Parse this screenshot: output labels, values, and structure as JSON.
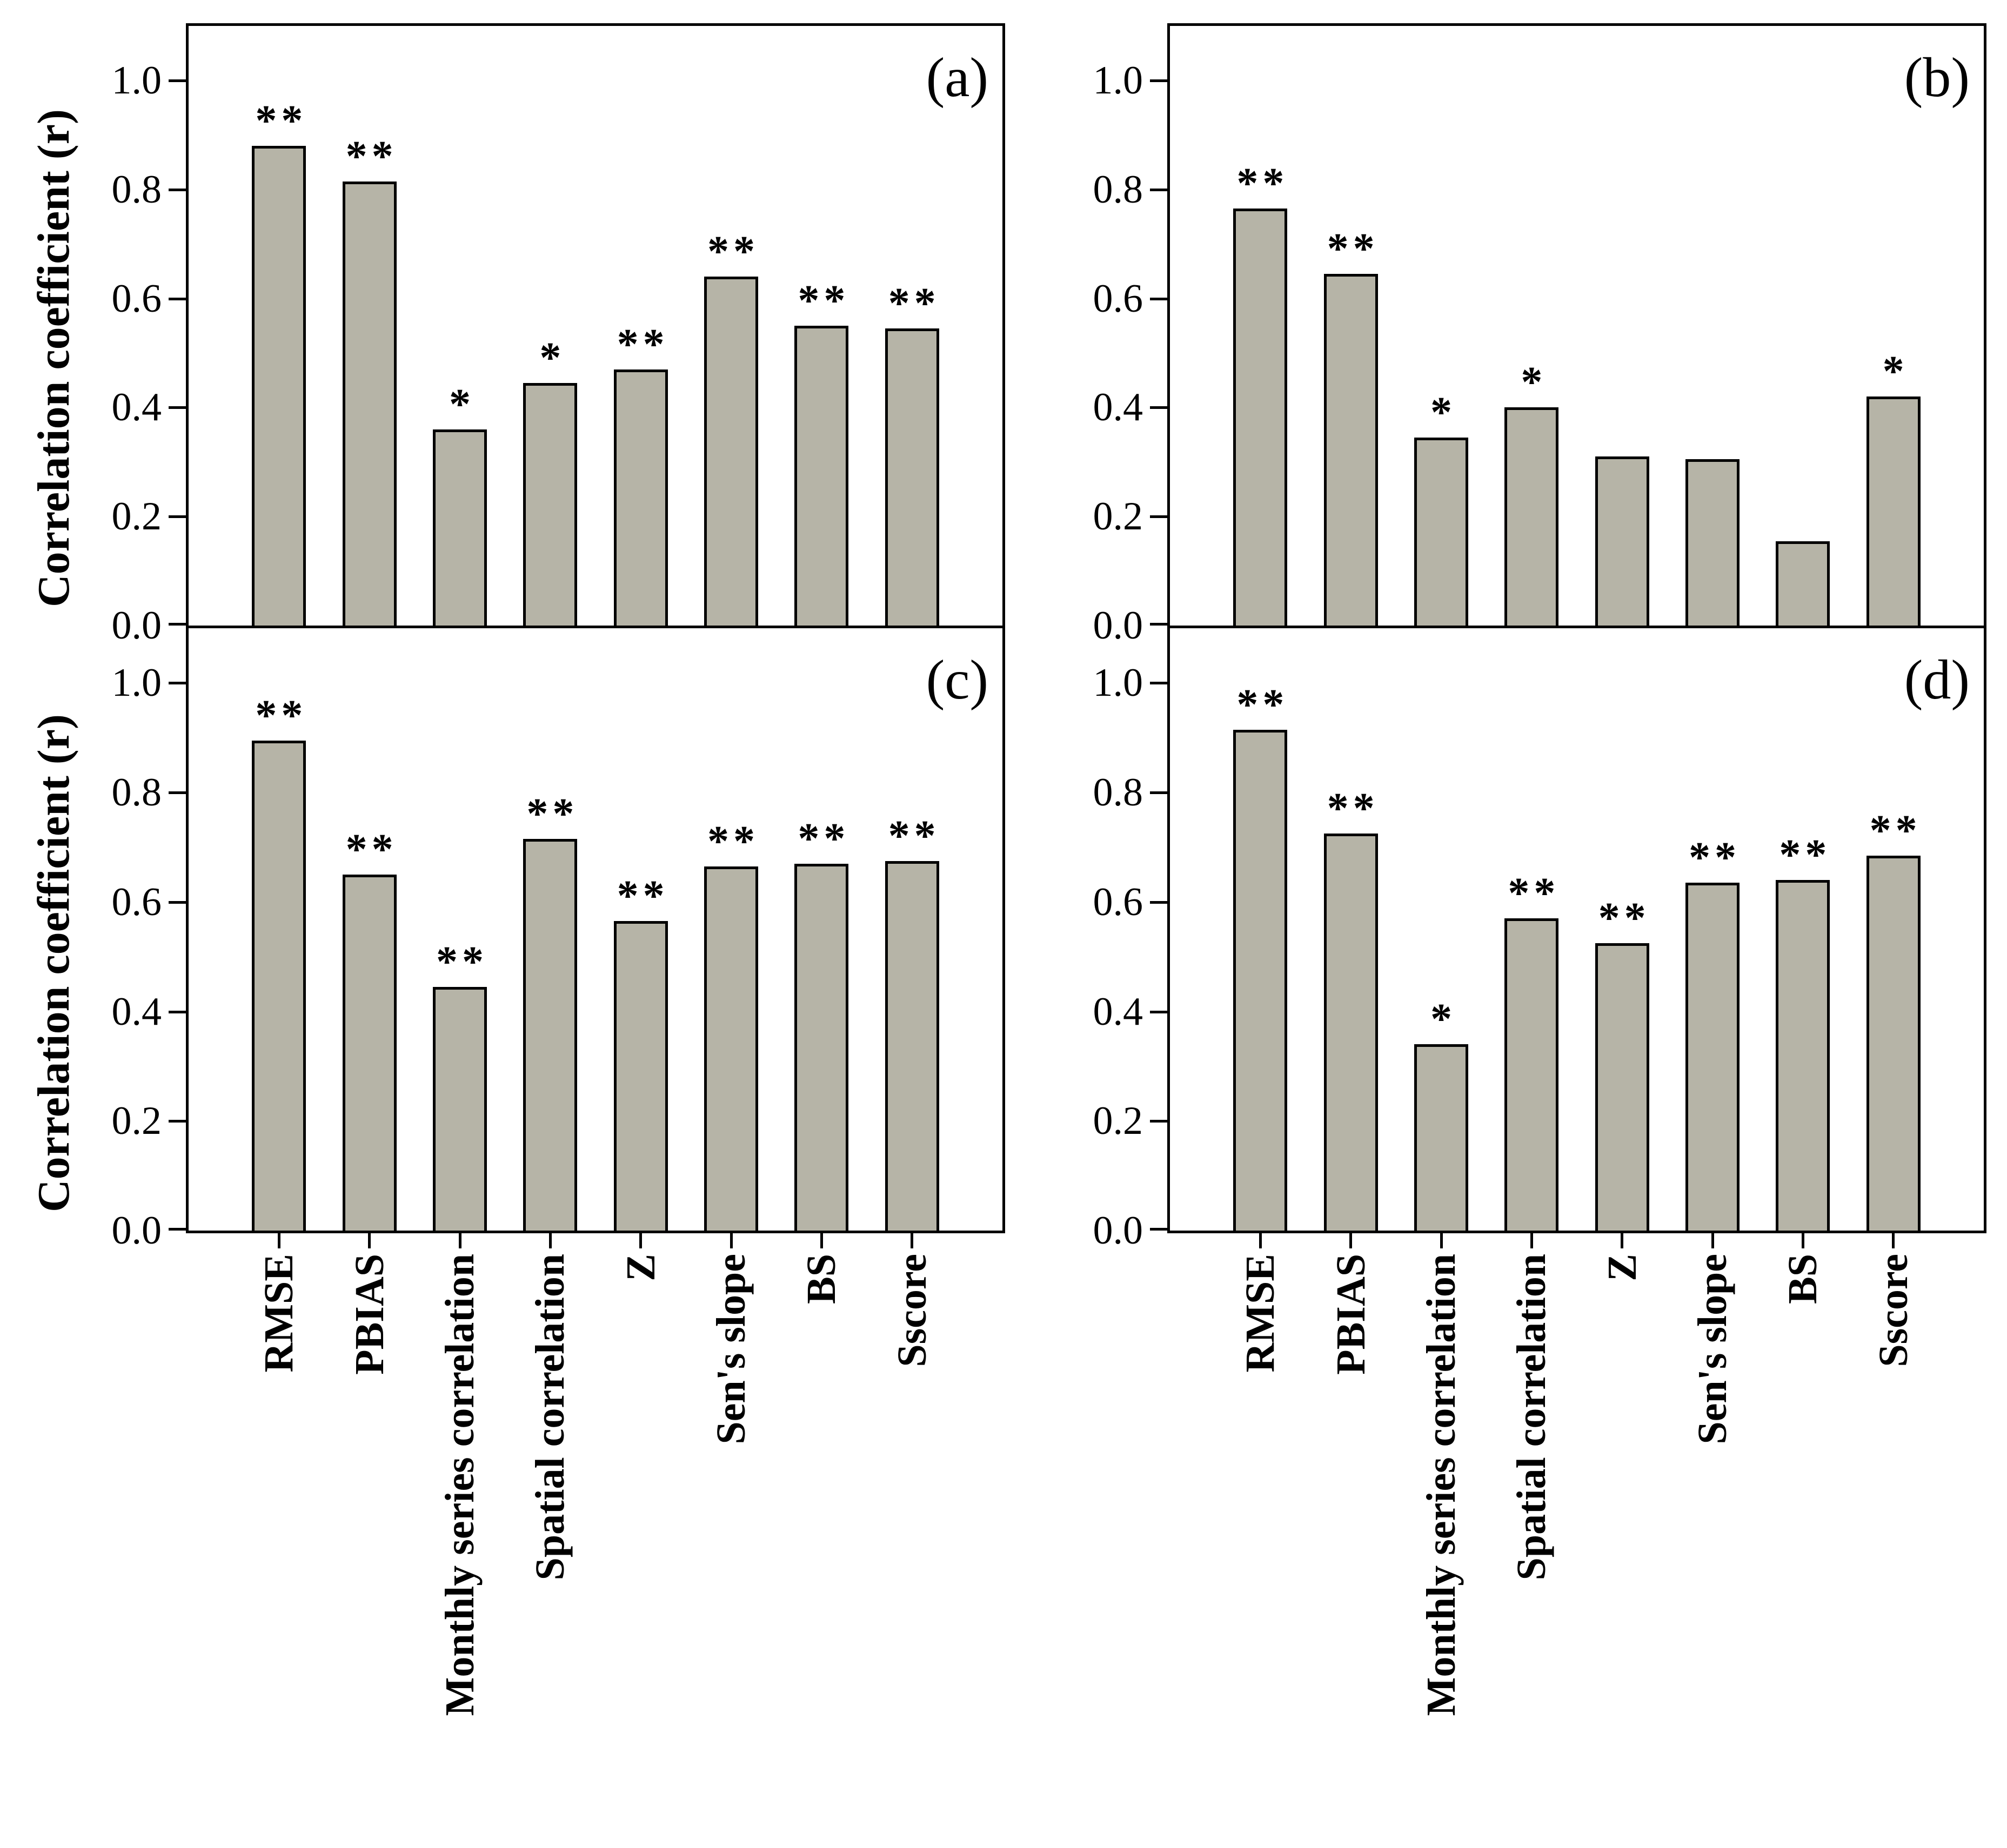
{
  "figure": {
    "ylabel": "Correlation coefficient (r)",
    "ytick_labels": [
      "1.0",
      "0.8",
      "0.6",
      "0.4",
      "0.2",
      "0.0"
    ],
    "categories": [
      "RMSE",
      "PBIAS",
      "Monthly series correlation",
      "Spatial correlation",
      "Z",
      "Sen's slope",
      "BS",
      "Sscore"
    ],
    "colors": {
      "bar_fill": "#b6b4a7",
      "axis": "#000000",
      "background": "#ffffff"
    }
  },
  "chart_data": [
    {
      "type": "bar",
      "panel_label": "(a)",
      "categories": [
        "RMSE",
        "PBIAS",
        "Monthly series correlation",
        "Spatial correlation",
        "Z",
        "Sen's slope",
        "BS",
        "Sscore"
      ],
      "values": [
        0.88,
        0.815,
        0.36,
        0.445,
        0.47,
        0.64,
        0.55,
        0.545
      ],
      "significance": [
        "**",
        "**",
        "*",
        "*",
        "**",
        "**",
        "**",
        "**"
      ],
      "ylabel": "Correlation coefficient (r)",
      "ylim": [
        0,
        1.1
      ],
      "yticks": [
        0.0,
        0.2,
        0.4,
        0.6,
        0.8,
        1.0
      ],
      "grid": false,
      "legend": false,
      "bar_color": "#b6b4a7"
    },
    {
      "type": "bar",
      "panel_label": "(b)",
      "categories": [
        "RMSE",
        "PBIAS",
        "Monthly series correlation",
        "Spatial correlation",
        "Z",
        "Sen's slope",
        "BS",
        "Sscore"
      ],
      "values": [
        0.765,
        0.645,
        0.345,
        0.4,
        0.31,
        0.305,
        0.155,
        0.42
      ],
      "significance": [
        "**",
        "**",
        "*",
        "*",
        "",
        "",
        "",
        "*"
      ],
      "ylabel": "Correlation coefficient (r)",
      "ylim": [
        0,
        1.1
      ],
      "yticks": [
        0.0,
        0.2,
        0.4,
        0.6,
        0.8,
        1.0
      ],
      "grid": false,
      "legend": false,
      "bar_color": "#b6b4a7"
    },
    {
      "type": "bar",
      "panel_label": "(c)",
      "categories": [
        "RMSE",
        "PBIAS",
        "Monthly series correlation",
        "Spatial correlation",
        "Z",
        "Sen's slope",
        "BS",
        "Sscore"
      ],
      "values": [
        0.895,
        0.65,
        0.445,
        0.715,
        0.565,
        0.665,
        0.67,
        0.675
      ],
      "significance": [
        "**",
        "**",
        "**",
        "**",
        "**",
        "**",
        "**",
        "**"
      ],
      "ylabel": "Correlation coefficient (r)",
      "ylim": [
        0,
        1.1
      ],
      "yticks": [
        0.0,
        0.2,
        0.4,
        0.6,
        0.8,
        1.0
      ],
      "grid": false,
      "legend": false,
      "bar_color": "#b6b4a7"
    },
    {
      "type": "bar",
      "panel_label": "(d)",
      "categories": [
        "RMSE",
        "PBIAS",
        "Monthly series correlation",
        "Spatial correlation",
        "Z",
        "Sen's slope",
        "BS",
        "Sscore"
      ],
      "values": [
        0.915,
        0.725,
        0.34,
        0.57,
        0.525,
        0.635,
        0.64,
        0.685
      ],
      "significance": [
        "**",
        "**",
        "*",
        "**",
        "**",
        "**",
        "**",
        "**"
      ],
      "ylabel": "Correlation coefficient (r)",
      "ylim": [
        0,
        1.1
      ],
      "yticks": [
        0.0,
        0.2,
        0.4,
        0.6,
        0.8,
        1.0
      ],
      "grid": false,
      "legend": false,
      "bar_color": "#b6b4a7"
    }
  ]
}
